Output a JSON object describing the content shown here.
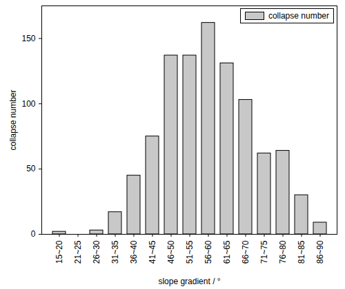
{
  "chart_data": {
    "type": "bar",
    "x_label": "slope gradient / °",
    "y_label": "collapse number",
    "categories": [
      "15~20",
      "21~25",
      "26~30",
      "31~35",
      "36~40",
      "41~45",
      "46~50",
      "51~55",
      "56~60",
      "61~65",
      "66~70",
      "71~75",
      "76~80",
      "81~85",
      "86~90"
    ],
    "series": [
      {
        "name": "collapse number",
        "color": "#c8c8c8",
        "values": [
          2,
          0,
          3,
          17,
          45,
          75,
          137,
          137,
          162,
          131,
          103,
          62,
          64,
          30,
          9
        ]
      }
    ],
    "ylim": [
      0,
      175
    ],
    "yticks": [
      0,
      50,
      100,
      150
    ],
    "legend": "top-right",
    "grid": false
  }
}
